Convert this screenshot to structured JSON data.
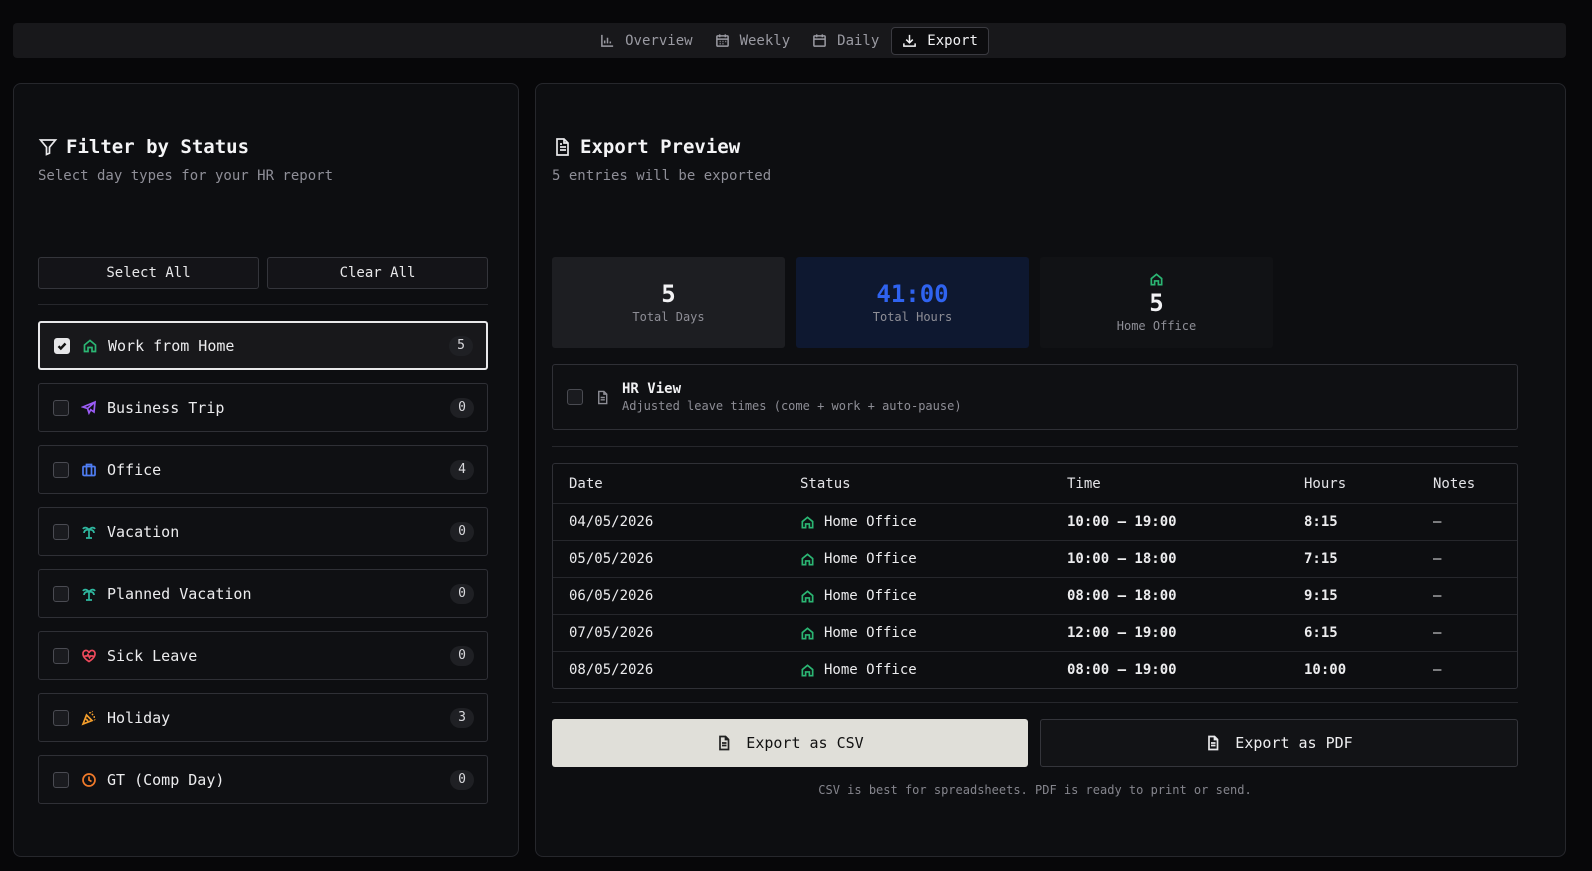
{
  "nav": {
    "tabs": [
      {
        "label": "Overview",
        "icon": "bar-chart-icon",
        "active": false
      },
      {
        "label": "Weekly",
        "icon": "calendar-icon",
        "active": false
      },
      {
        "label": "Daily",
        "icon": "calendar-icon",
        "active": false
      },
      {
        "label": "Export",
        "icon": "download-icon",
        "active": true
      }
    ]
  },
  "filter": {
    "title": "Filter by Status",
    "subtitle": "Select day types for your HR report",
    "select_all": "Select All",
    "clear_all": "Clear All",
    "items": [
      {
        "label": "Work from Home",
        "count": "5",
        "checked": true,
        "icon": "home-icon",
        "color": "#2bb673"
      },
      {
        "label": "Business Trip",
        "count": "0",
        "checked": false,
        "icon": "plane-icon",
        "color": "#9b5cf6"
      },
      {
        "label": "Office",
        "count": "4",
        "checked": false,
        "icon": "briefcase-icon",
        "color": "#4f7df3"
      },
      {
        "label": "Vacation",
        "count": "0",
        "checked": false,
        "icon": "palm-tree-icon",
        "color": "#2fb8a0"
      },
      {
        "label": "Planned Vacation",
        "count": "0",
        "checked": false,
        "icon": "palm-tree-icon",
        "color": "#2fb8a0"
      },
      {
        "label": "Sick Leave",
        "count": "0",
        "checked": false,
        "icon": "heart-pulse-icon",
        "color": "#ef4a5c"
      },
      {
        "label": "Holiday",
        "count": "3",
        "checked": false,
        "icon": "party-popper-icon",
        "color": "#f59e2b"
      },
      {
        "label": "GT (Comp Day)",
        "count": "0",
        "checked": false,
        "icon": "clock-icon",
        "color": "#f07a2a"
      }
    ]
  },
  "preview": {
    "title": "Export Preview",
    "subtitle": "5 entries will be exported",
    "stats": {
      "total_days": {
        "value": "5",
        "label": "Total Days"
      },
      "total_hours": {
        "value": "41:00",
        "label": "Total Hours",
        "color": "#2f63f0"
      },
      "home_office": {
        "value": "5",
        "label": "Home Office",
        "icon": "home-icon"
      }
    },
    "hr_view": {
      "title": "HR View",
      "desc": "Adjusted leave times (come + work + auto-pause)",
      "checked": false
    },
    "table": {
      "headers": [
        "Date",
        "Status",
        "Time",
        "Hours",
        "Notes"
      ],
      "rows": [
        {
          "date": "04/05/2026",
          "status": "Home Office",
          "time": "10:00 – 19:00",
          "hours": "8:15",
          "notes": "–"
        },
        {
          "date": "05/05/2026",
          "status": "Home Office",
          "time": "10:00 – 18:00",
          "hours": "7:15",
          "notes": "–"
        },
        {
          "date": "06/05/2026",
          "status": "Home Office",
          "time": "08:00 – 18:00",
          "hours": "9:15",
          "notes": "–"
        },
        {
          "date": "07/05/2026",
          "status": "Home Office",
          "time": "12:00 – 19:00",
          "hours": "6:15",
          "notes": "–"
        },
        {
          "date": "08/05/2026",
          "status": "Home Office",
          "time": "08:00 – 19:00",
          "hours": "10:00",
          "notes": "–"
        }
      ]
    },
    "export_csv": "Export as CSV",
    "export_pdf": "Export as PDF",
    "footnote": "CSV is best for spreadsheets. PDF is ready to print or send."
  }
}
